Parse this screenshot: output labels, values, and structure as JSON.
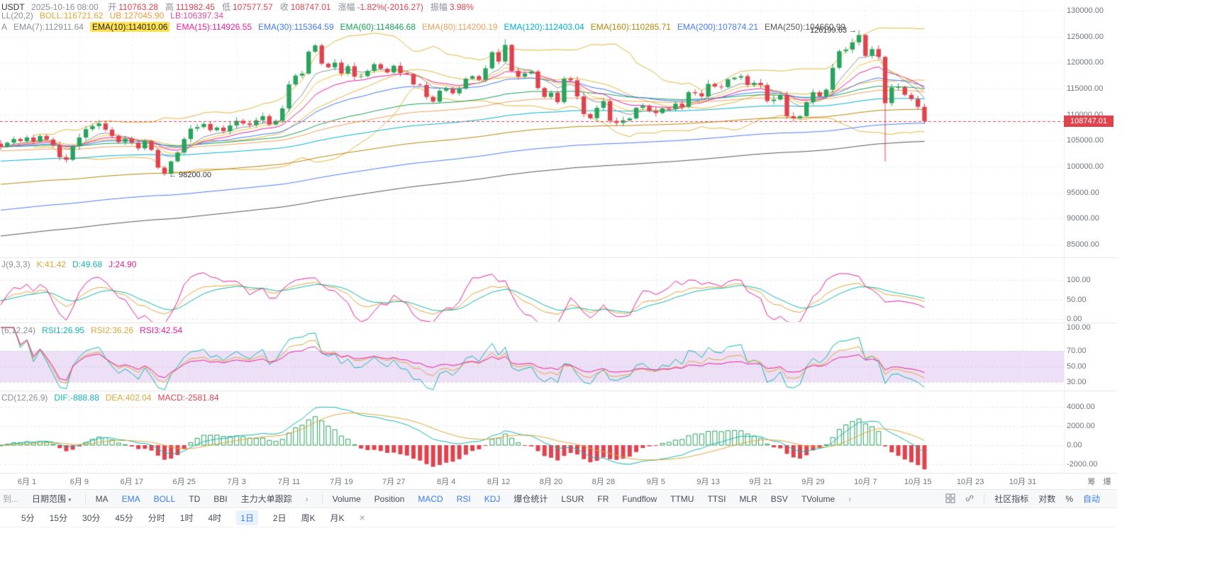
{
  "app": {
    "title_fragment": "USDT",
    "datetime": "2025-10-16 08:00"
  },
  "header": {
    "ohlc": [
      {
        "label": "开",
        "value": "110763.28"
      },
      {
        "label": "高",
        "value": "111982.45"
      },
      {
        "label": "低",
        "value": "107577.57"
      },
      {
        "label": "收",
        "value": "108747.01"
      },
      {
        "label": "涨幅",
        "value": "-1.82%(-2016.27)"
      },
      {
        "label": "振幅",
        "value": "3.98%"
      }
    ],
    "boll_row": [
      {
        "text": "LL(20,2)",
        "color": "#8a8f99"
      },
      {
        "text": "BOLL:116721.62",
        "color": "#dfa63b"
      },
      {
        "text": "UB:127045.90",
        "color": "#ef9b3c"
      },
      {
        "text": "LB:106397.34",
        "color": "#d94fa0"
      }
    ],
    "ema_row_prefix": "A",
    "ema_row": [
      {
        "text": "EMA(7):112911.64",
        "color": "#8a8f99"
      },
      {
        "text": "EMA(10):114010.06",
        "color": "#222222",
        "bg": "#ffe14d"
      },
      {
        "text": "EMA(15):114926.55",
        "color": "#e91e9c"
      },
      {
        "text": "EMA(30):115364.59",
        "color": "#3f7bf5"
      },
      {
        "text": "EMA(60):114846.68",
        "color": "#18a058"
      },
      {
        "text": "EMA(80):114200.19",
        "color": "#f0a05a"
      },
      {
        "text": "EMA(120):112403.04",
        "color": "#00b0d4"
      },
      {
        "text": "EMA(160):110285.71",
        "color": "#b8860b"
      },
      {
        "text": "EMA(200):107874.21",
        "color": "#4a7cf7"
      },
      {
        "text": "EMA(250):104660.99",
        "color": "#555555"
      }
    ]
  },
  "panels": {
    "kdj_title": [
      {
        "text": "J(9,3,3)",
        "color": "#8a8f99"
      },
      {
        "text": "K:41.42",
        "color": "#dfa63b"
      },
      {
        "text": "D:49.68",
        "color": "#13b5b1"
      },
      {
        "text": "J:24.90",
        "color": "#e91e9c"
      }
    ],
    "rsi_title": [
      {
        "text": "(6,12,24)",
        "color": "#8a8f99"
      },
      {
        "text": "RSI1:26.95",
        "color": "#13b5b1"
      },
      {
        "text": "RSI2:36.26",
        "color": "#dfa63b"
      },
      {
        "text": "RSI3:42.54",
        "color": "#e91e9c"
      }
    ],
    "macd_title": [
      {
        "text": "CD(12,26,9)",
        "color": "#8a8f99"
      },
      {
        "text": "DIF:-888.88",
        "color": "#13b5b1"
      },
      {
        "text": "DEA:402.04",
        "color": "#dfa63b"
      },
      {
        "text": "MACD:-2581.84",
        "color": "#e0434e"
      }
    ]
  },
  "axes": {
    "main": {
      "labels": [
        "130000.00",
        "125000.00",
        "120000.00",
        "115000.00",
        "110000.00",
        "105000.00",
        "100000.00",
        "95000.00",
        "90000.00",
        "85000.00"
      ],
      "values": [
        130000,
        125000,
        120000,
        115000,
        110000,
        105000,
        100000,
        95000,
        90000,
        85000
      ]
    },
    "kdj": {
      "labels": [
        "100.00",
        "50.00",
        "0.00"
      ],
      "values": [
        100,
        50,
        0
      ]
    },
    "rsi": {
      "labels": [
        "100.00",
        "70.00",
        "50.00",
        "30.00"
      ],
      "values": [
        100,
        70,
        50,
        30
      ]
    },
    "macd": {
      "labels": [
        "4000.00",
        "2000.00",
        "0.00",
        "-2000.00"
      ],
      "values": [
        4000,
        2000,
        0,
        -2000
      ]
    },
    "x": {
      "labels": [
        "6月 1",
        "6月 9",
        "6月 17",
        "6月 25",
        "7月 3",
        "7月 11",
        "7月 19",
        "7月 27",
        "8月 4",
        "8月 12",
        "8月 20",
        "8月 28",
        "9月 5",
        "9月 13",
        "9月 21",
        "9月 29",
        "10月 7",
        "10月 15",
        "10月 23",
        "10月 31"
      ],
      "days": [
        0,
        8,
        16,
        24,
        32,
        40,
        48,
        56,
        64,
        72,
        80,
        88,
        96,
        104,
        112,
        120,
        128,
        136,
        144,
        152
      ]
    }
  },
  "annotations": {
    "high": "126199.63 →",
    "low": "← 98200.00",
    "price_tag": "108747.01",
    "chip_char": "筹",
    "burst_char": "爆"
  },
  "toolbar_primary": {
    "groups": [
      [
        {
          "text": "到...",
          "muted": true,
          "name": "goto-button"
        },
        {
          "text": "日期范围",
          "caret": true,
          "name": "date-range-button"
        }
      ],
      [
        {
          "text": "MA",
          "name": "overlay-ma"
        },
        {
          "text": "EMA",
          "active": true,
          "name": "overlay-ema"
        },
        {
          "text": "BOLL",
          "active": true,
          "name": "overlay-boll"
        },
        {
          "text": "TD",
          "name": "overlay-td"
        },
        {
          "text": "BBI",
          "name": "overlay-bbi"
        },
        {
          "text": "主力大单跟踪",
          "name": "overlay-whale-tracking"
        },
        {
          "text": "›",
          "chevron": true,
          "name": "overlay-more-chevron"
        }
      ],
      [
        {
          "text": "Volume",
          "name": "indicator-volume"
        },
        {
          "text": "Position",
          "name": "indicator-position"
        },
        {
          "text": "MACD",
          "active": true,
          "name": "indicator-macd"
        },
        {
          "text": "RSI",
          "active": true,
          "name": "indicator-rsi"
        },
        {
          "text": "KDJ",
          "active": true,
          "name": "indicator-kdj"
        },
        {
          "text": "爆仓统计",
          "name": "indicator-liquidation-stats"
        },
        {
          "text": "LSUR",
          "name": "indicator-lsur"
        },
        {
          "text": "FR",
          "name": "indicator-fr"
        },
        {
          "text": "Fundflow",
          "name": "indicator-fundflow"
        },
        {
          "text": "TTMU",
          "name": "indicator-ttmu"
        },
        {
          "text": "TTSI",
          "name": "indicator-ttsi"
        },
        {
          "text": "MLR",
          "name": "indicator-mlr"
        },
        {
          "text": "BSV",
          "name": "indicator-bsv"
        },
        {
          "text": "TVolume",
          "name": "indicator-tvolume"
        },
        {
          "text": "›",
          "chevron": true,
          "name": "indicator-more-chevron"
        }
      ]
    ],
    "right": [
      {
        "text": "社区指标",
        "name": "community-indicators-button"
      },
      {
        "text": "对数",
        "name": "log-scale-toggle"
      },
      {
        "text": "%",
        "name": "percent-scale-toggle"
      },
      {
        "text": "自动",
        "active": true,
        "name": "auto-scale-toggle"
      }
    ]
  },
  "toolbar_timeframes": {
    "items": [
      {
        "text": "5分",
        "name": "timeframe-5min"
      },
      {
        "text": "15分",
        "name": "timeframe-15min"
      },
      {
        "text": "30分",
        "name": "timeframe-30min"
      },
      {
        "text": "45分",
        "name": "timeframe-45min"
      },
      {
        "text": "分时",
        "name": "timeframe-timeshare"
      },
      {
        "text": "1时",
        "name": "timeframe-1hour"
      },
      {
        "text": "4时",
        "name": "timeframe-4hour"
      },
      {
        "text": "1日",
        "active": true,
        "name": "timeframe-1day"
      },
      {
        "text": "2日",
        "name": "timeframe-2day"
      },
      {
        "text": "周K",
        "name": "timeframe-week"
      },
      {
        "text": "月K",
        "name": "timeframe-month"
      }
    ],
    "close_label": "×"
  },
  "chart_data": {
    "type": "candlestick",
    "symbol_quote": "USDT",
    "timeframe": "1日",
    "current_bar": {
      "open": 110763.28,
      "high": 111982.45,
      "low": 107577.57,
      "close": 108747.01,
      "change_pct": -1.82,
      "change_abs": -2016.27,
      "amplitude_pct": 3.98
    },
    "readouts": {
      "boll": {
        "mid": 116721.62,
        "ub": 127045.9,
        "lb": 106397.34
      },
      "ema": {
        "7": 112911.64,
        "10": 114010.06,
        "15": 114926.55,
        "30": 115364.59,
        "60": 114846.68,
        "80": 114200.19,
        "120": 112403.04,
        "160": 110285.71,
        "200": 107874.21,
        "250": 104660.99
      },
      "kdj": {
        "k": 41.42,
        "d": 49.68,
        "j": 24.9
      },
      "rsi": {
        "rsi1": 26.95,
        "rsi2": 36.26,
        "rsi3": 42.54
      },
      "macd": {
        "dif": -888.88,
        "dea": 402.04,
        "macd": -2581.84
      }
    },
    "marked_high": 126199.63,
    "marked_low": 98200.0,
    "price": {
      "pre_days": 4,
      "closes": [
        103800,
        104600,
        105300,
        104900,
        105600,
        104800,
        105900,
        105200,
        104100,
        101800,
        101300,
        103900,
        105600,
        107200,
        107800,
        108300,
        107100,
        105900,
        104700,
        105300,
        104600,
        103500,
        104900,
        103200,
        99800,
        98600,
        101000,
        102700,
        105300,
        107300,
        107600,
        108200,
        107000,
        107500,
        106800,
        107900,
        108800,
        108300,
        108000,
        108900,
        109700,
        108100,
        108800,
        111200,
        115800,
        117500,
        117900,
        122100,
        123300,
        119800,
        119100,
        120000,
        117900,
        119300,
        117300,
        117400,
        118400,
        119700,
        118800,
        118100,
        119400,
        118000,
        117800,
        115800,
        115700,
        113400,
        112500,
        114600,
        115000,
        114100,
        115000,
        116900,
        117400,
        116700,
        118900,
        122000,
        120200,
        123400,
        118400,
        117300,
        117900,
        118300,
        115100,
        113400,
        114200,
        112400,
        116900,
        116600,
        113500,
        110100,
        109300,
        111300,
        112600,
        108800,
        108400,
        108900,
        109250,
        111300,
        111700,
        110700,
        110300,
        111200,
        111000,
        112100,
        111500,
        114300,
        114100,
        113500,
        115900,
        115400,
        115300,
        116800,
        117100,
        117400,
        115700,
        116100,
        115700,
        112600,
        112900,
        113800,
        109700,
        109300,
        109700,
        112400,
        114300,
        113500,
        114800,
        119000,
        122200,
        122500,
        123900,
        125300,
        121300,
        122600,
        121100,
        112200,
        115200,
        115300,
        113800,
        113000,
        111500,
        108747.01
      ],
      "wick_overrides": {
        "25": {
          "low": 98200
        },
        "77": {
          "high": 124500
        },
        "131": {
          "high": 126199.63
        },
        "135": {
          "low": 101000
        }
      },
      "last_close": 108747.01
    },
    "overlays": {
      "ema_periods": [
        7,
        10,
        15,
        30,
        60,
        80,
        120,
        160,
        200,
        250
      ],
      "ema_seeds": {
        "80": 103000,
        "120": 101000,
        "160": 96500,
        "200": 91500,
        "250": 86500
      },
      "boll_period": 20,
      "boll_mult": 2
    },
    "indicator_params": {
      "kdj": [
        9,
        3,
        3
      ],
      "rsi": [
        6,
        12,
        24
      ],
      "macd": [
        12,
        26,
        9
      ]
    },
    "colors": {
      "up": "#2aa35d",
      "down": "#e0434e",
      "boll": "#e5b43c",
      "price_line": "#e0434e",
      "rsi_band": "rgba(215,185,235,0.45)",
      "kdj": {
        "k": "#dfa63b",
        "d": "#13b5b1",
        "j": "#e91e9c"
      },
      "rsi": {
        "r1": "#13b5b1",
        "r2": "#dfa63b",
        "r3": "#e91e9c"
      },
      "macd": {
        "dif": "#13b5b1",
        "dea": "#dfa63b",
        "pos": "#2aa35d",
        "neg": "#e0434e"
      },
      "ema": {
        "7": "#8a8f99",
        "10": "#f0c43c",
        "15": "#e91e9c",
        "30": "#3f7bf5",
        "60": "#18a058",
        "80": "#f0a05a",
        "120": "#00b0d4",
        "160": "#b8860b",
        "200": "#4a7cf7",
        "250": "#555555"
      }
    }
  }
}
